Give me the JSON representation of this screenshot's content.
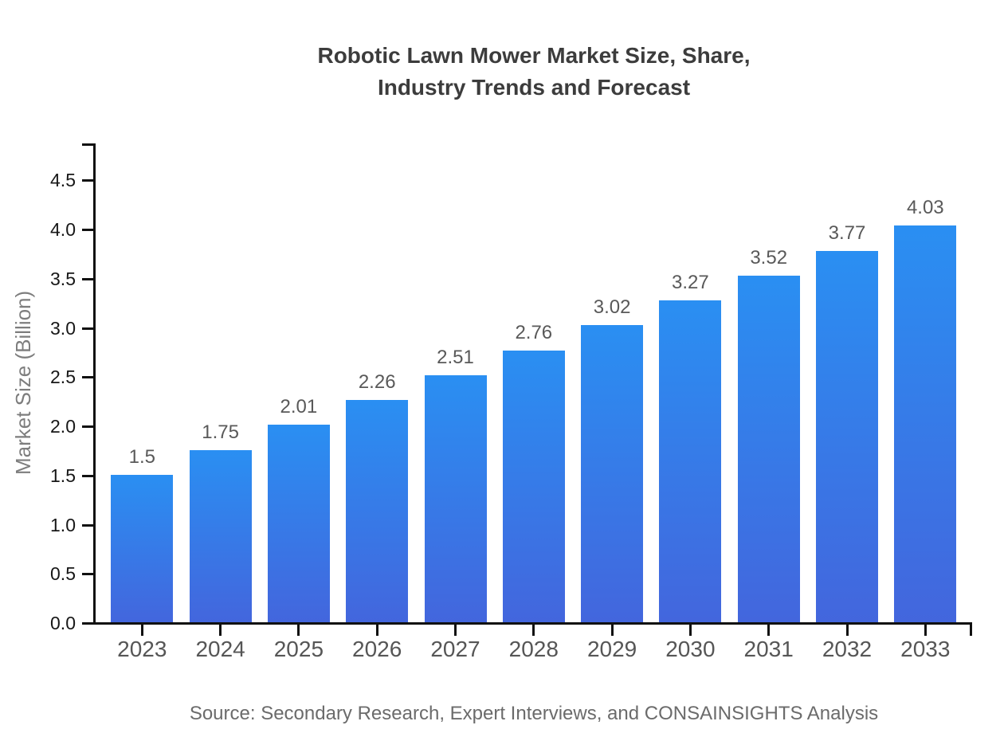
{
  "title": {
    "line1": "Robotic Lawn Mower Market Size, Share,",
    "line2": "Industry Trends and Forecast"
  },
  "source_note": "Source: Secondary Research, Expert Interviews, and CONSAINSIGHTS Analysis",
  "colors": {
    "background": "#ffffff",
    "bar_gradient_top": "#2a8ff2",
    "bar_gradient_bottom": "#4366dd",
    "axis": "#111111",
    "title_text": "#3c3c3c",
    "ytick_text": "#171717",
    "xtick_text": "#565656",
    "value_label_text": "#595959",
    "y_axis_title_text": "#7d7d7d",
    "source_text": "#6b6b6b"
  },
  "chart_data": {
    "type": "bar",
    "title": "Robotic Lawn Mower Market Size, Share, Industry Trends and Forecast",
    "categories": [
      "2023",
      "2024",
      "2025",
      "2026",
      "2027",
      "2028",
      "2029",
      "2030",
      "2031",
      "2032",
      "2033"
    ],
    "values": [
      1.5,
      1.75,
      2.01,
      2.26,
      2.51,
      2.76,
      3.02,
      3.27,
      3.52,
      3.77,
      4.03
    ],
    "value_labels": [
      "1.5",
      "1.75",
      "2.01",
      "2.26",
      "2.51",
      "2.76",
      "3.02",
      "3.27",
      "3.52",
      "3.77",
      "4.03"
    ],
    "xlabel": "",
    "ylabel": "Market Size (Billion)",
    "ylim": [
      0,
      4.85
    ],
    "yticks": [
      0,
      0.5,
      1,
      1.5,
      2,
      2.5,
      3,
      3.5,
      4,
      4.5
    ],
    "ytick_labels": [
      "0.0",
      "0.5",
      "1.0",
      "1.5",
      "2.0",
      "2.5",
      "3.0",
      "3.5",
      "4.0",
      "4.5"
    ],
    "grid": false,
    "legend_position": "none",
    "bar_color_top": "#2a8ff2",
    "bar_color_bottom": "#4366dd"
  }
}
